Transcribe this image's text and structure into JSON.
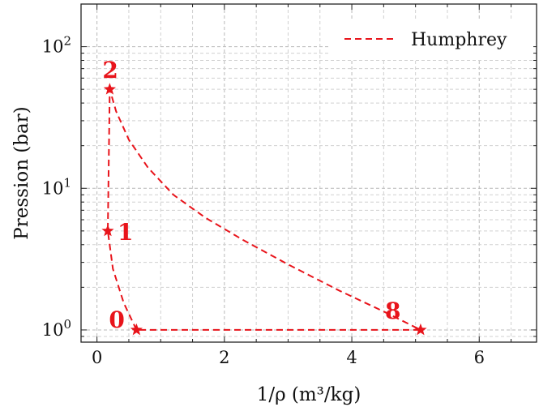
{
  "chart_data": {
    "type": "line",
    "title": "",
    "xlabel": "1/ρ (m³/kg)",
    "ylabel": "Pression (bar)",
    "x_scale": "linear",
    "y_scale": "log",
    "xlim": [
      -0.25,
      6.9
    ],
    "ylim": [
      0.82,
      200
    ],
    "x_ticks": [
      0,
      2,
      4,
      6
    ],
    "x_tick_labels": [
      "0",
      "2",
      "4",
      "6"
    ],
    "y_ticks": [
      1,
      10,
      100
    ],
    "y_tick_labels": [
      "10",
      "10",
      "10"
    ],
    "y_tick_exponents": [
      "0",
      "1",
      "2"
    ],
    "grid": true,
    "legend_position": "top-right",
    "color": "#e8141b",
    "series": [
      {
        "name": "Humphrey",
        "color": "#e8141b",
        "style": "dashed",
        "x": [
          0.62,
          0.42,
          0.25,
          0.17,
          0.2,
          0.3,
          0.5,
          0.8,
          1.2,
          1.7,
          2.3,
          3.0,
          3.8,
          4.5,
          5.08,
          0.62
        ],
        "y": [
          1.0,
          1.55,
          2.7,
          5.0,
          50,
          35,
          22,
          14,
          9,
          6.2,
          4.3,
          2.9,
          1.9,
          1.35,
          1.0,
          1.0
        ]
      }
    ],
    "points": [
      {
        "label": "0",
        "x": 0.62,
        "y": 1.0
      },
      {
        "label": "1",
        "x": 0.17,
        "y": 5.0
      },
      {
        "label": "2",
        "x": 0.2,
        "y": 50
      },
      {
        "label": "8",
        "x": 5.08,
        "y": 1.0
      }
    ]
  }
}
